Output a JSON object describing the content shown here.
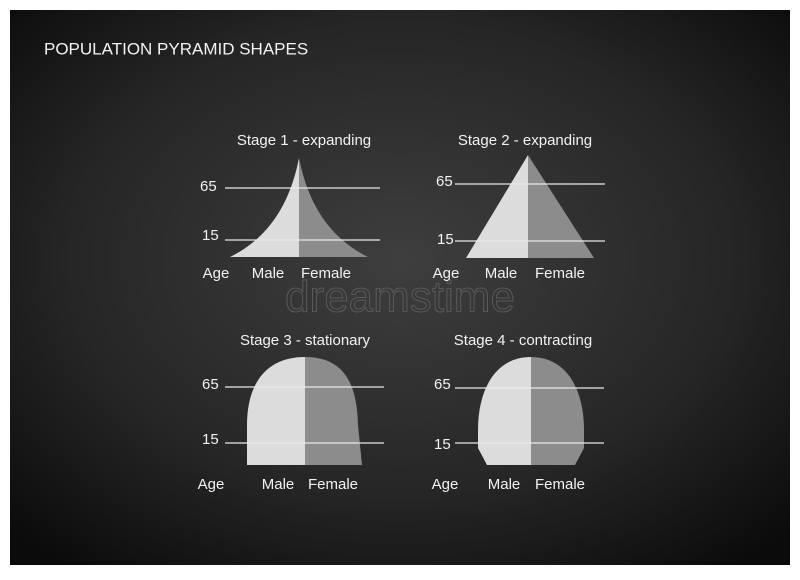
{
  "title": "POPULATION PYRAMID SHAPES",
  "watermark": "dreamstime",
  "panels": [
    {
      "title": "Stage 1 - expanding",
      "upper_tick": 65,
      "lower_tick": 15,
      "axis_label": "Age",
      "male_label": "Male",
      "female_label": "Female"
    },
    {
      "title": "Stage 2 - expanding",
      "upper_tick": 65,
      "lower_tick": 15,
      "axis_label": "Age",
      "male_label": "Male",
      "female_label": "Female"
    },
    {
      "title": "Stage 3 - stationary",
      "upper_tick": 65,
      "lower_tick": 15,
      "axis_label": "Age",
      "male_label": "Male",
      "female_label": "Female"
    },
    {
      "title": "Stage 4 - contracting",
      "upper_tick": 65,
      "lower_tick": 15,
      "axis_label": "Age",
      "male_label": "Male",
      "female_label": "Female"
    }
  ]
}
